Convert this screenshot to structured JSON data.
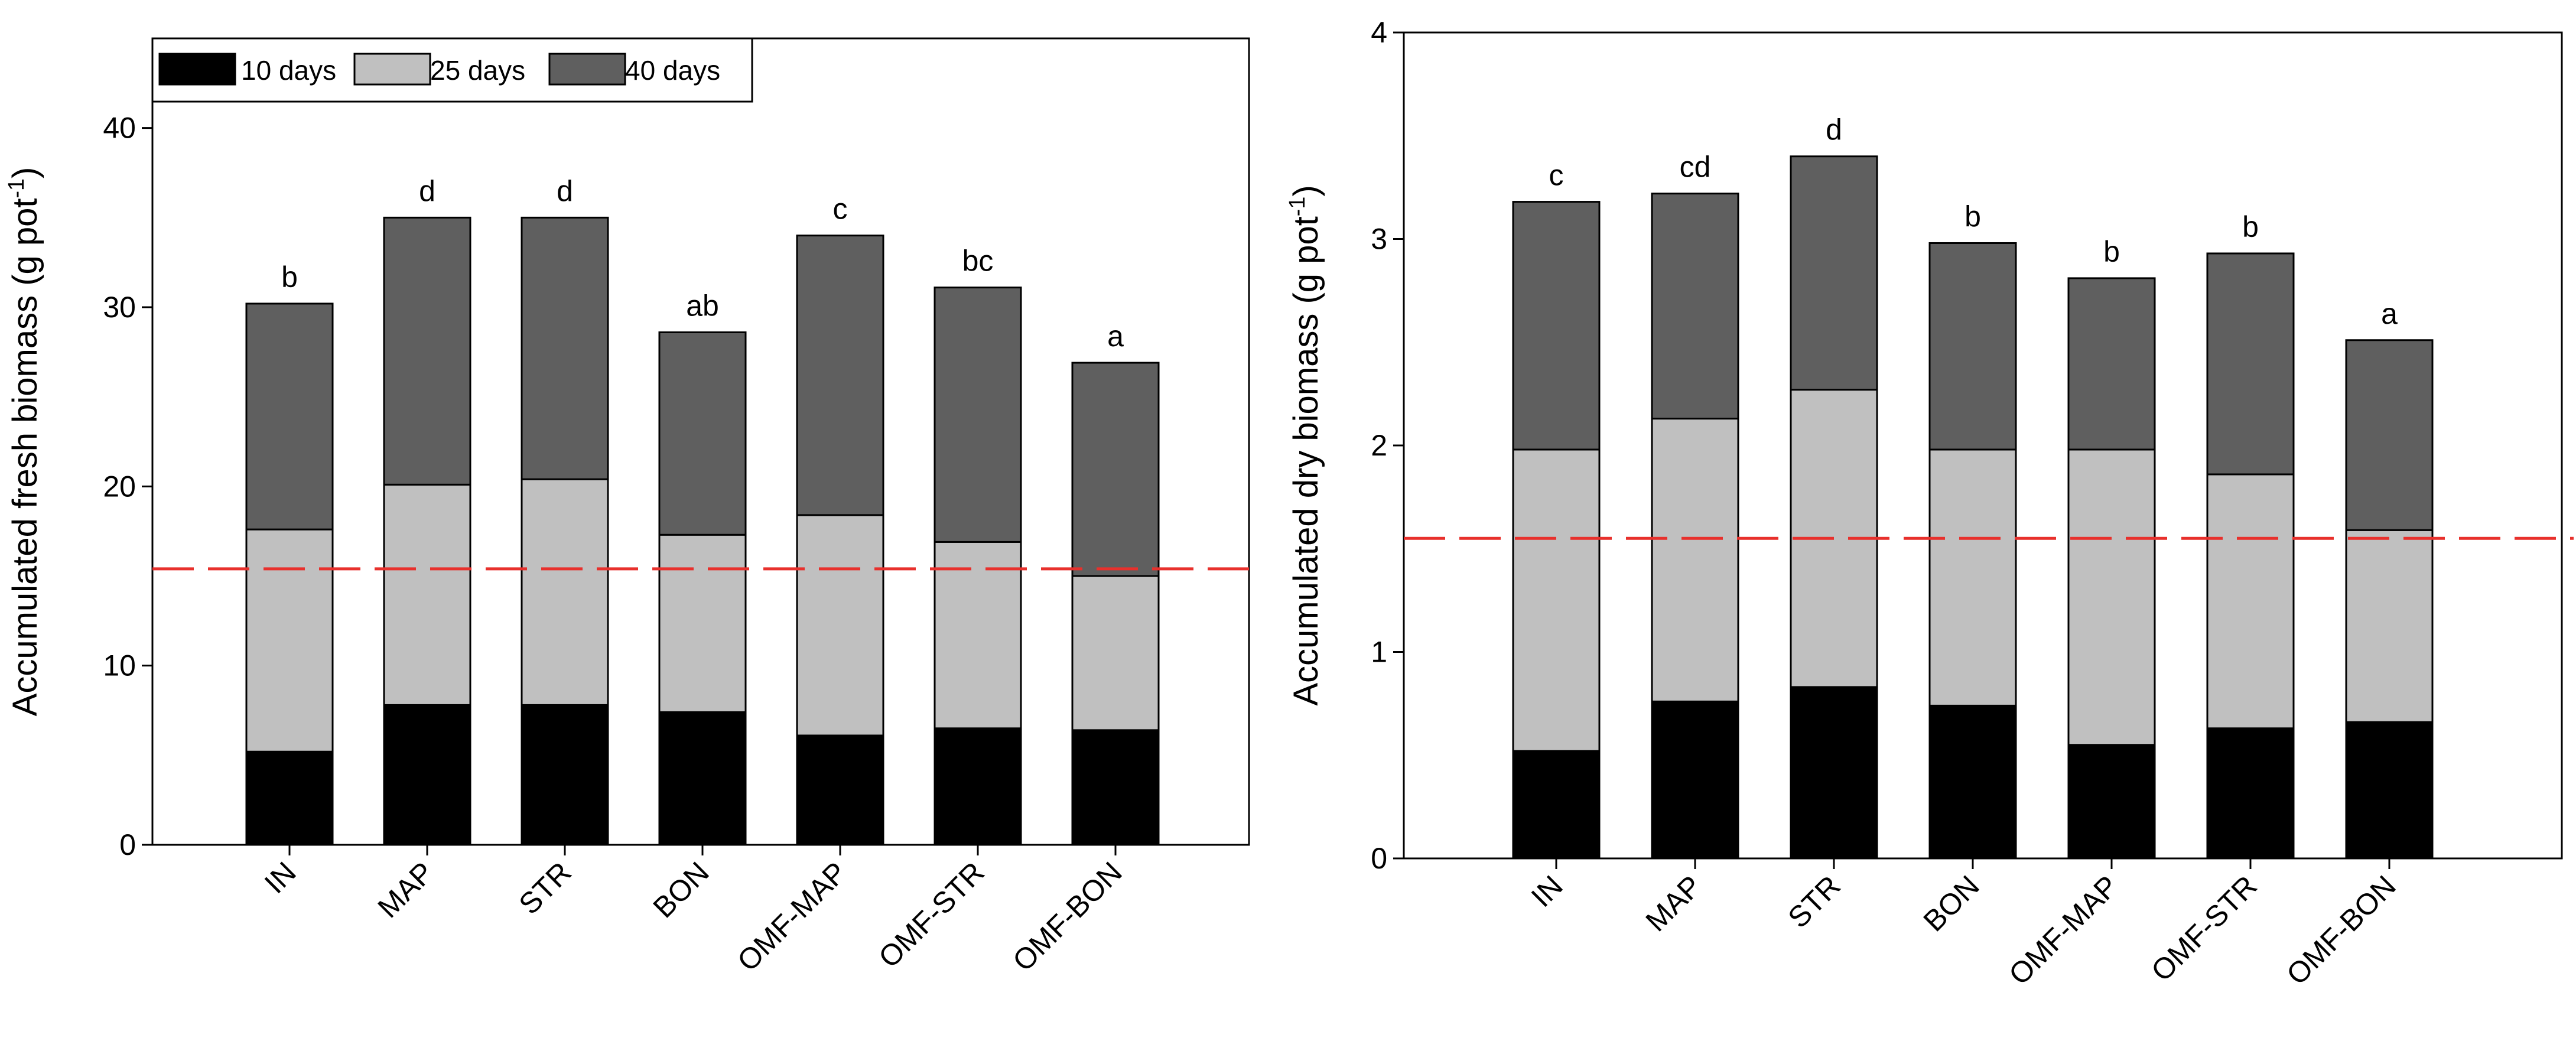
{
  "chart_data": [
    {
      "type": "bar",
      "stacked": true,
      "ylabel": "Accumulated fresh biomass (g pot",
      "ylabel_superscript": "-1",
      "ylabel_suffix": ")",
      "ylim": [
        0,
        45
      ],
      "yticks": [
        0,
        10,
        20,
        30,
        40
      ],
      "categories": [
        "IN",
        "MAP",
        "STR",
        "BON",
        "OMF-MAP",
        "OMF-STR",
        "OMF-BON"
      ],
      "series": [
        {
          "name": "10 days",
          "color": "#000000",
          "values": [
            5.2,
            7.8,
            7.8,
            7.4,
            6.1,
            6.5,
            6.4
          ]
        },
        {
          "name": "25 days",
          "color": "#c0c0c0",
          "values": [
            12.4,
            12.3,
            12.6,
            9.9,
            12.3,
            10.4,
            8.6
          ]
        },
        {
          "name": "40 days",
          "color": "#5f5f5f",
          "values": [
            12.6,
            14.9,
            14.6,
            11.3,
            15.6,
            14.2,
            11.9
          ]
        }
      ],
      "significance_letters": [
        "b",
        "d",
        "d",
        "ab",
        "c",
        "bc",
        "a"
      ],
      "reference_line": {
        "value": 15.4,
        "color": "#e8302c",
        "style": "dashed"
      },
      "legend": {
        "position": "top-left",
        "orientation": "horizontal"
      }
    },
    {
      "type": "bar",
      "stacked": true,
      "ylabel": "Accumulated dry biomass (g pot",
      "ylabel_superscript": "-1",
      "ylabel_suffix": ")",
      "ylim": [
        0,
        4
      ],
      "yticks": [
        0,
        1,
        2,
        3,
        4
      ],
      "categories": [
        "IN",
        "MAP",
        "STR",
        "BON",
        "OMF-MAP",
        "OMF-STR",
        "OMF-BON"
      ],
      "series": [
        {
          "name": "10 days",
          "color": "#000000",
          "values": [
            0.52,
            0.76,
            0.83,
            0.74,
            0.55,
            0.63,
            0.66
          ]
        },
        {
          "name": "25 days",
          "color": "#c0c0c0",
          "values": [
            1.46,
            1.37,
            1.44,
            1.24,
            1.43,
            1.23,
            0.93
          ]
        },
        {
          "name": "40 days",
          "color": "#5f5f5f",
          "values": [
            1.2,
            1.09,
            1.13,
            1.0,
            0.83,
            1.07,
            0.92
          ]
        }
      ],
      "significance_letters": [
        "c",
        "cd",
        "d",
        "b",
        "b",
        "b",
        "a"
      ],
      "reference_line": {
        "value": 1.55,
        "color": "#e8302c",
        "style": "dashed"
      }
    }
  ]
}
